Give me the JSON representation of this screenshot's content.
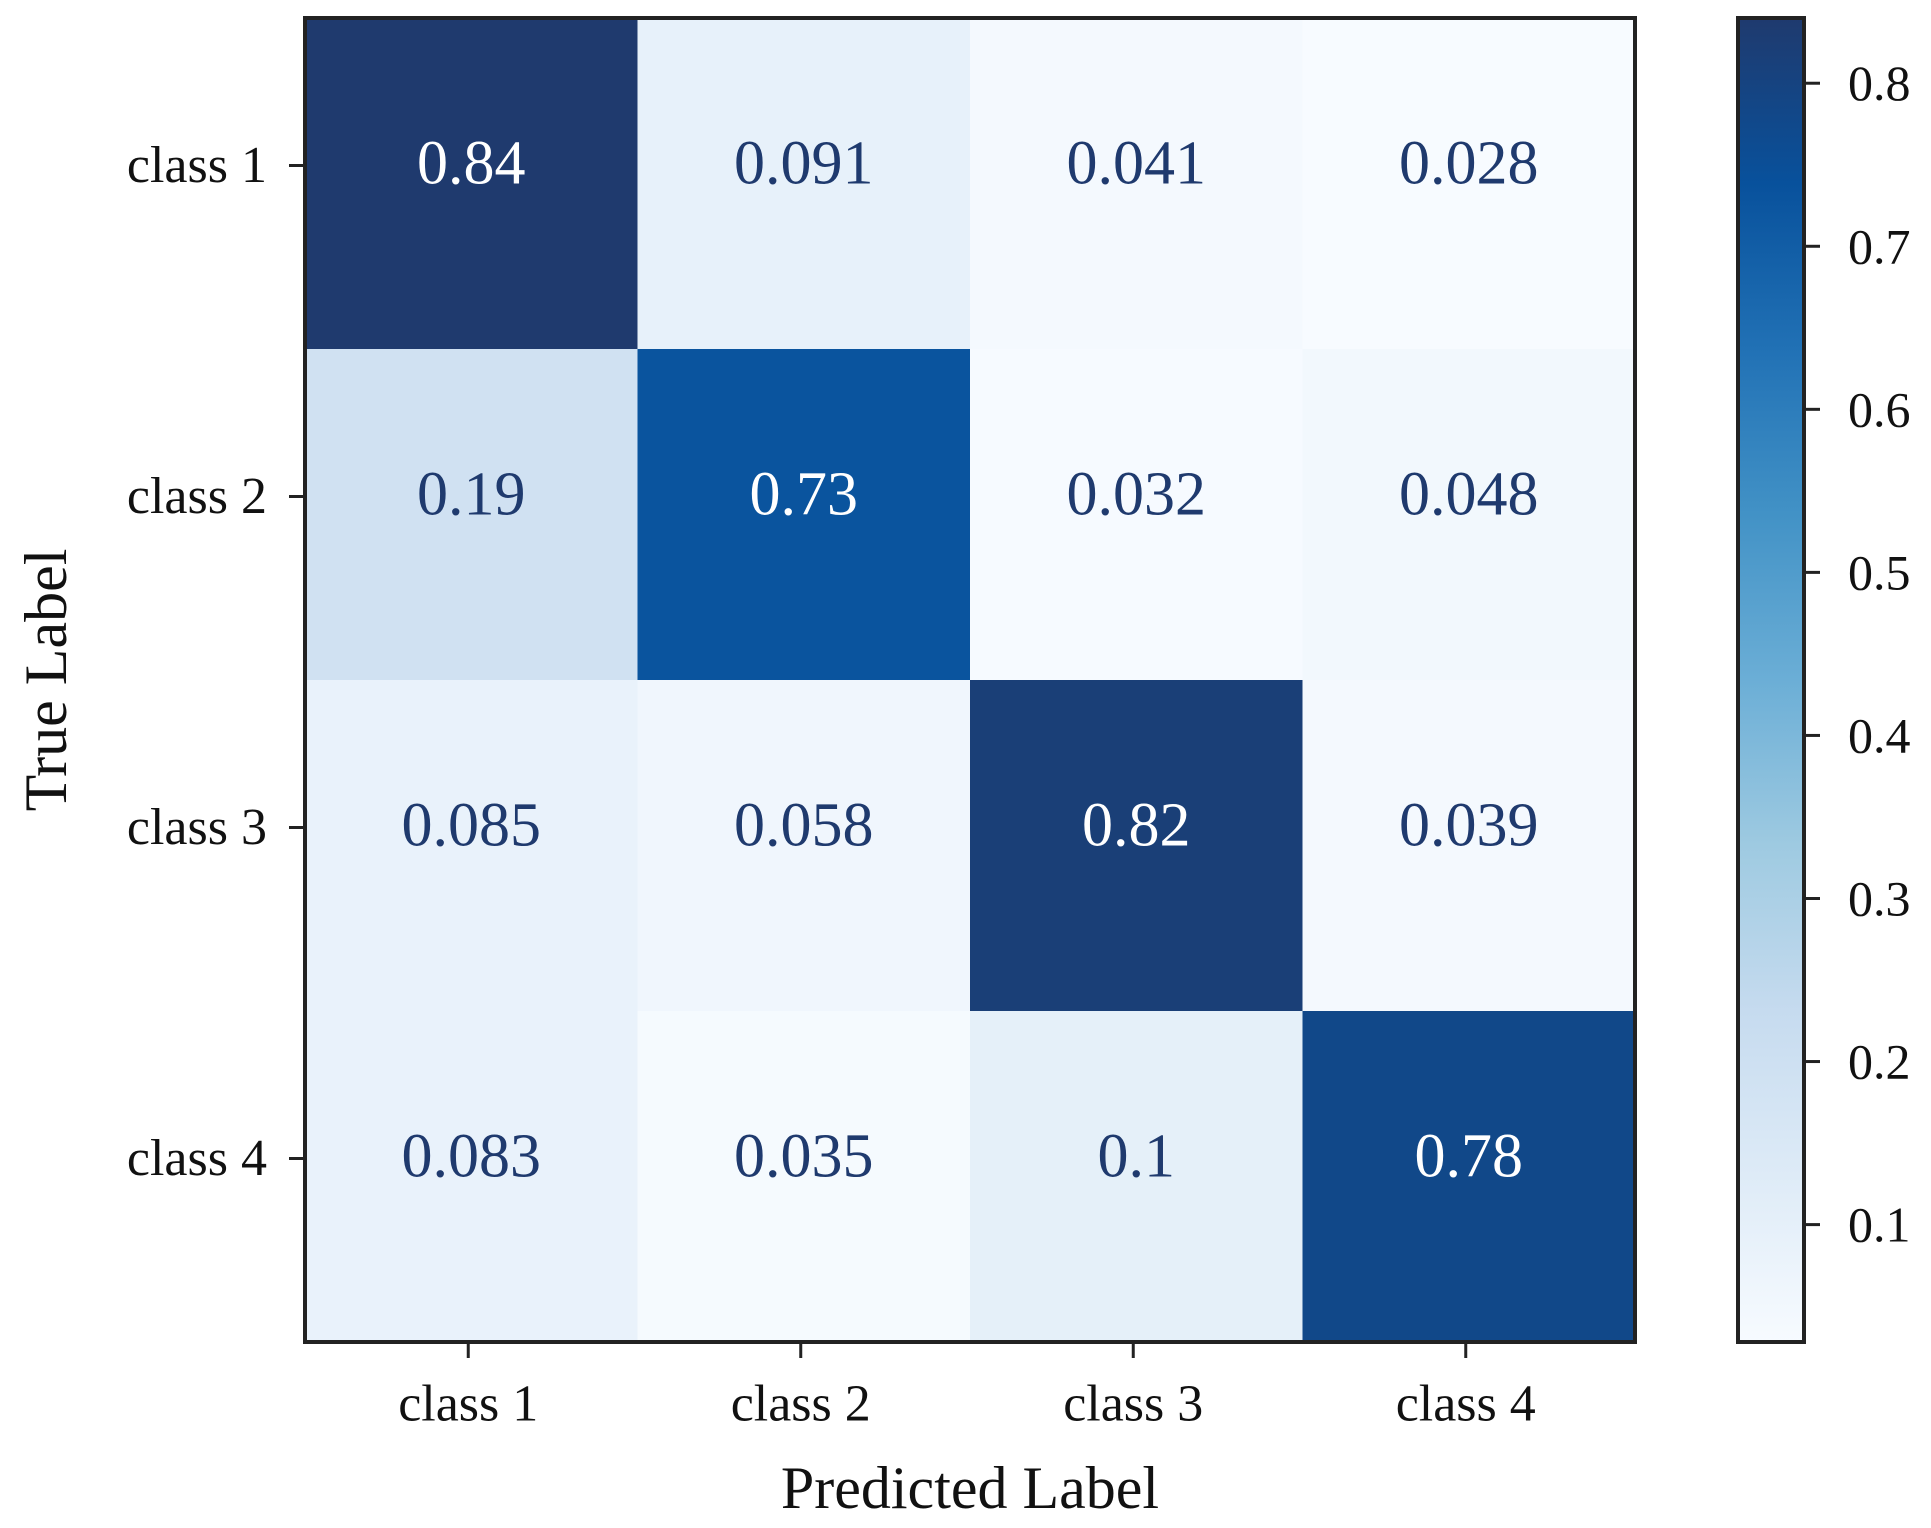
{
  "chart_data": {
    "type": "heatmap",
    "xlabel": "Predicted Label",
    "ylabel": "True Label",
    "x_categories": [
      "class 1",
      "class 2",
      "class 3",
      "class 4"
    ],
    "y_categories": [
      "class 1",
      "class 2",
      "class 3",
      "class 4"
    ],
    "values": [
      [
        0.84,
        0.091,
        0.041,
        0.028
      ],
      [
        0.19,
        0.73,
        0.032,
        0.048
      ],
      [
        0.085,
        0.058,
        0.82,
        0.039
      ],
      [
        0.083,
        0.035,
        0.1,
        0.78
      ]
    ],
    "cell_labels": [
      [
        "0.84",
        "0.091",
        "0.041",
        "0.028"
      ],
      [
        "0.19",
        "0.73",
        "0.032",
        "0.048"
      ],
      [
        "0.085",
        "0.058",
        "0.82",
        "0.039"
      ],
      [
        "0.083",
        "0.035",
        "0.1",
        "0.78"
      ]
    ],
    "colormap": "Blues",
    "colorbar": {
      "range": [
        0.028,
        0.84
      ],
      "ticks": [
        0.1,
        0.2,
        0.3,
        0.4,
        0.5,
        0.6,
        0.7,
        0.8
      ],
      "tick_labels": [
        "0.1",
        "0.2",
        "0.3",
        "0.4",
        "0.5",
        "0.6",
        "0.7",
        "0.8"
      ],
      "placement": "right"
    },
    "colors": {
      "dark_text": "#1f3a6e",
      "light_text": "#ffffff",
      "frame": "#222222"
    }
  }
}
